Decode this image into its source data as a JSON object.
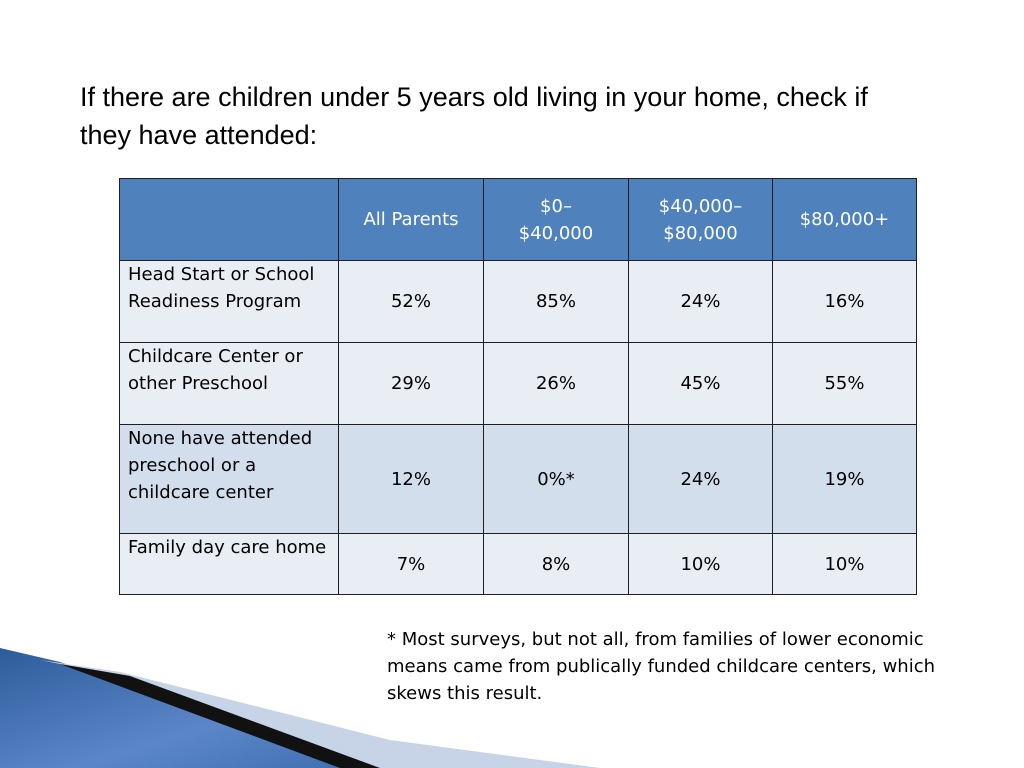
{
  "heading": "If there are children under 5 years old living in your home, check if they have attended:",
  "table": {
    "header": [
      [],
      [
        "All Parents"
      ],
      [
        "$0–",
        "$40,000"
      ],
      [
        "$40,000–",
        "$80,000"
      ],
      [
        "$80,000+"
      ]
    ],
    "rows": [
      [
        "Head Start or School Readiness Program",
        "52%",
        "85%",
        "24%",
        "16%"
      ],
      [
        "Childcare Center or other Preschool",
        "29%",
        "26%",
        "45%",
        "55%"
      ],
      [
        "None have attended preschool or a childcare center",
        "12%",
        "0%*",
        "24%",
        "19%"
      ],
      [
        "Family day care home",
        "7%",
        "8%",
        "10%",
        "10%"
      ]
    ]
  },
  "footnote": "* Most surveys, but not all, from families of lower economic means came from publically funded childcare centers, which skews this result."
}
